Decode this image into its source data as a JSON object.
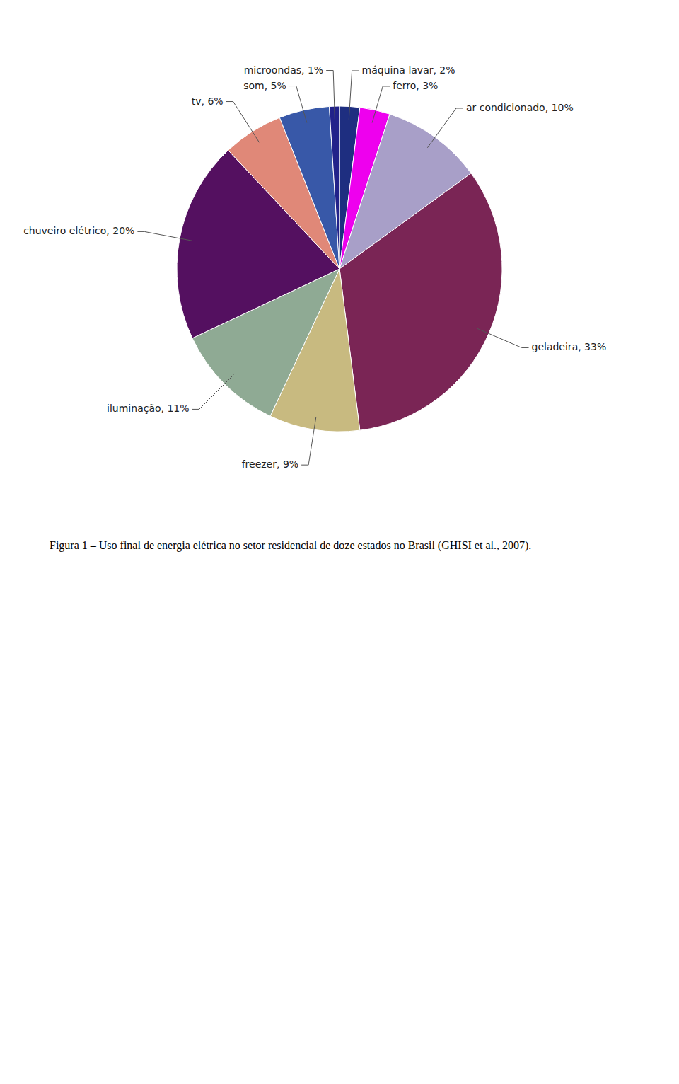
{
  "chart_data": {
    "type": "pie",
    "categories": [
      "máquina lavar, 2%",
      "ferro, 3%",
      "ar condicionado, 10%",
      "geladeira, 33%",
      "freezer, 9%",
      "iluminação, 11%",
      "chuveiro elétrico, 20%",
      "tv, 6%",
      "som, 5%",
      "microondas, 1%"
    ],
    "values": [
      2,
      3,
      10,
      33,
      9,
      11,
      20,
      6,
      5,
      1
    ],
    "colors": [
      "#1E2E80",
      "#EE00EE",
      "#A89FC8",
      "#7A2555",
      "#C8BA80",
      "#8FAA94",
      "#541060",
      "#E08878",
      "#3858A8",
      "#22228A"
    ],
    "caption": "Figura 1 – Uso final de energia elétrica no setor residencial de doze estados no Brasil (GHISI et al., 2007)."
  }
}
